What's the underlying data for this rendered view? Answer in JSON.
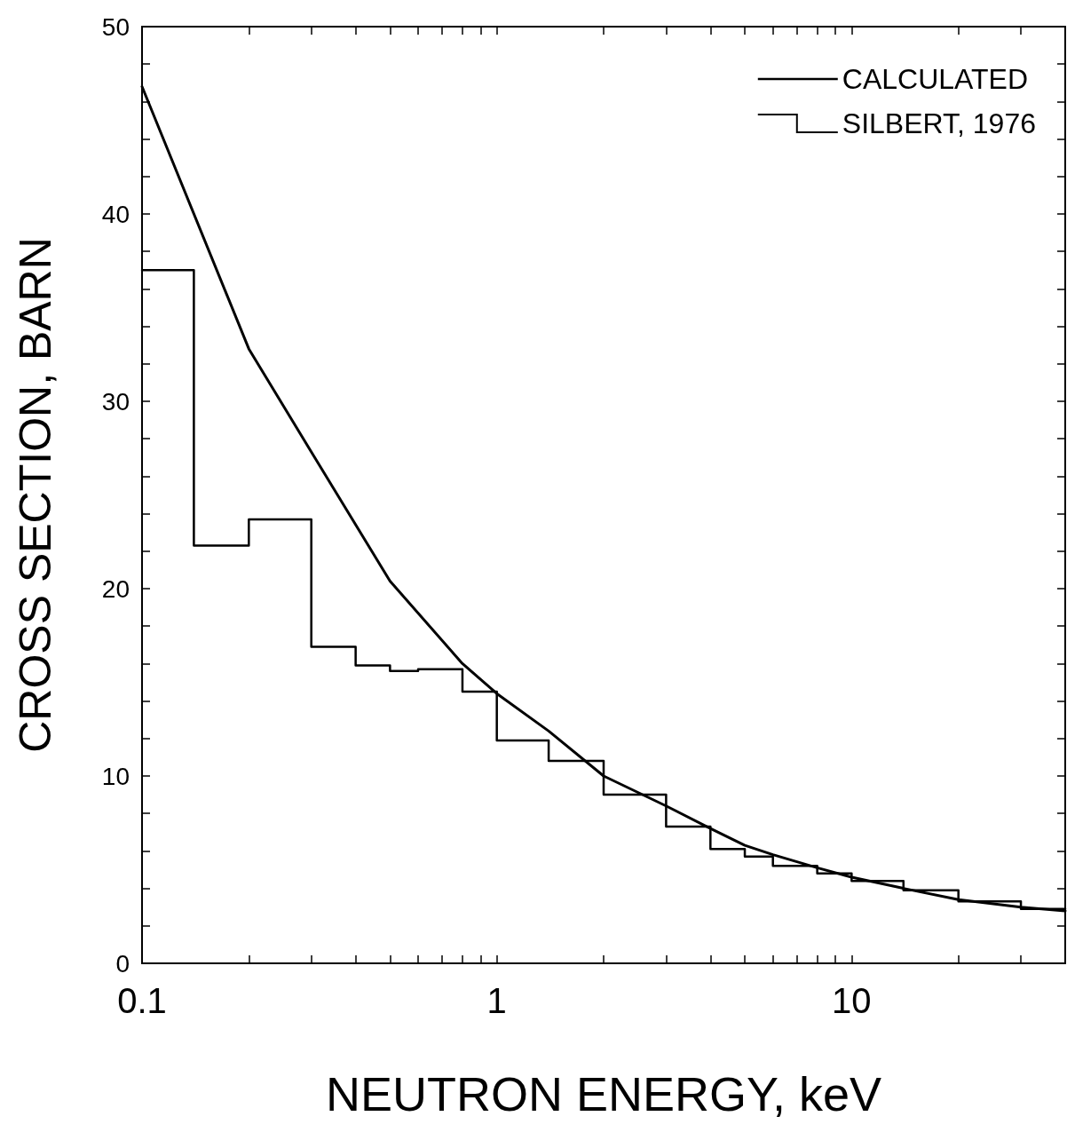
{
  "chart_data": {
    "type": "line",
    "xlabel": "NEUTRON ENERGY, keV",
    "ylabel": "CROSS SECTION, BARN",
    "log": "x",
    "xlim": [
      0.1,
      40
    ],
    "ylim": [
      0,
      50
    ],
    "xticks": [
      0.1,
      {
        "value": 0.2,
        "label": null
      },
      {
        "value": 0.3,
        "label": null
      },
      {
        "value": 0.4,
        "label": null
      },
      {
        "value": 0.5,
        "label": null
      },
      {
        "value": 0.6,
        "label": null
      },
      {
        "value": 0.7,
        "label": null
      },
      {
        "value": 0.8,
        "label": null
      },
      {
        "value": 0.9,
        "label": null
      },
      1,
      {
        "value": 2,
        "label": null
      },
      {
        "value": 3,
        "label": null
      },
      {
        "value": 4,
        "label": null
      },
      {
        "value": 5,
        "label": null
      },
      {
        "value": 6,
        "label": null
      },
      {
        "value": 7,
        "label": null
      },
      {
        "value": 8,
        "label": null
      },
      {
        "value": 9,
        "label": null
      },
      10,
      {
        "value": 20,
        "label": null
      },
      {
        "value": 30,
        "label": null
      }
    ],
    "yticks": [
      0,
      {
        "value": 2,
        "label": null
      },
      {
        "value": 4,
        "label": null
      },
      {
        "value": 6,
        "label": null
      },
      {
        "value": 8,
        "label": null
      },
      10,
      {
        "value": 12,
        "label": null
      },
      {
        "value": 14,
        "label": null
      },
      {
        "value": 16,
        "label": null
      },
      {
        "value": 18,
        "label": null
      },
      20,
      {
        "value": 22,
        "label": null
      },
      {
        "value": 24,
        "label": null
      },
      {
        "value": 26,
        "label": null
      },
      {
        "value": 28,
        "label": null
      },
      30,
      {
        "value": 32,
        "label": null
      },
      {
        "value": 34,
        "label": null
      },
      {
        "value": 36,
        "label": null
      },
      {
        "value": 38,
        "label": null
      },
      40,
      {
        "value": 42,
        "label": null
      },
      {
        "value": 44,
        "label": null
      },
      {
        "value": 46,
        "label": null
      },
      {
        "value": 48,
        "label": null
      },
      50
    ],
    "grid": false,
    "legend": "top right",
    "marker": "none",
    "series": [
      {
        "name": "CALCULATED",
        "color": "#000000",
        "x": [
          0.1,
          0.2,
          0.3,
          0.5,
          0.8,
          1,
          1.4,
          2,
          3,
          4,
          5,
          6,
          8,
          10,
          14,
          20,
          30,
          40
        ],
        "values": [
          46.8,
          32.8,
          27.3,
          20.4,
          16.0,
          14.4,
          12.4,
          10.0,
          8.4,
          7.2,
          6.3,
          5.8,
          5.1,
          4.6,
          4.0,
          3.4,
          3.0,
          2.8
        ]
      },
      {
        "name": "SILBERT, 1976",
        "type": "step",
        "color": "#000000",
        "x": [
          0.1,
          0.14,
          0.2,
          0.3,
          0.4,
          0.5,
          0.6,
          0.8,
          1,
          1.4,
          2,
          3,
          4,
          5,
          6,
          8,
          10,
          14,
          20,
          30,
          40
        ],
        "values": [
          37.0,
          22.3,
          23.7,
          16.9,
          15.9,
          15.6,
          15.7,
          14.5,
          11.9,
          10.8,
          9.0,
          7.3,
          6.1,
          5.7,
          5.2,
          4.8,
          4.4,
          3.9,
          3.3,
          2.9,
          2.9
        ]
      }
    ]
  }
}
